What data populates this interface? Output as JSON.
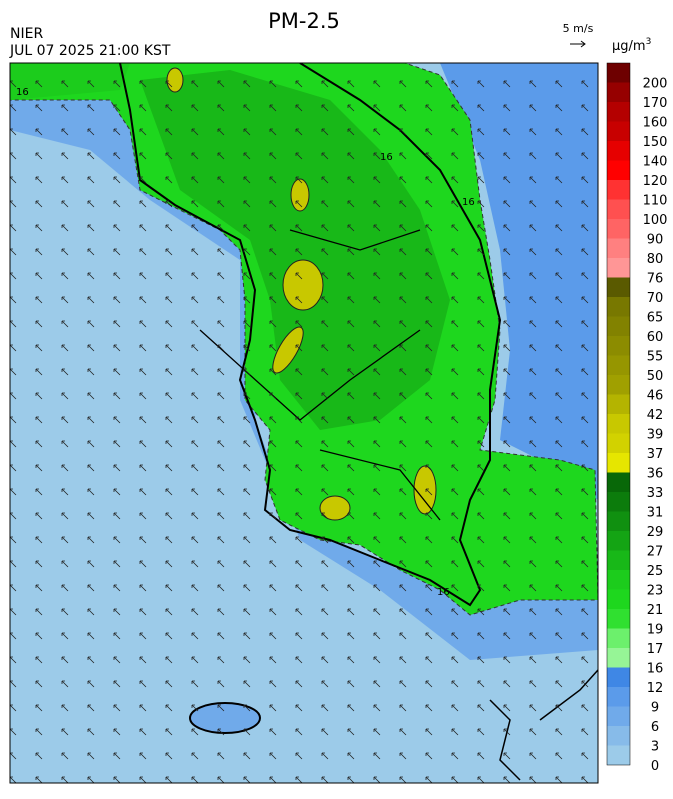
{
  "header": {
    "title": "PM-2.5",
    "source": "NIER",
    "datetime": "JUL 07 2025 21:00 KST"
  },
  "wind_scale": {
    "label": "5 m/s"
  },
  "colorbar": {
    "unit": "μg/m",
    "unit_sup": "3",
    "levels": [
      0,
      3,
      6,
      9,
      12,
      16,
      17,
      19,
      21,
      23,
      25,
      27,
      29,
      31,
      33,
      36,
      37,
      39,
      42,
      46,
      50,
      55,
      60,
      65,
      70,
      76,
      80,
      90,
      100,
      110,
      120,
      140,
      150,
      160,
      170,
      200
    ],
    "colors": [
      "#9ccbe9",
      "#87bbe9",
      "#70aaea",
      "#5b9bea",
      "#3f87e5",
      "#96f596",
      "#6cf06c",
      "#30e030",
      "#1ed71e",
      "#1ccc1c",
      "#18b818",
      "#14a414",
      "#109010",
      "#0c7c0c",
      "#086808",
      "#e6e600",
      "#d2d200",
      "#c8c800",
      "#b4b400",
      "#a0a000",
      "#969600",
      "#8c8c00",
      "#828200",
      "#787800",
      "#5a5a00",
      "#ff9696",
      "#ff8080",
      "#ff6464",
      "#ff5050",
      "#ff3232",
      "#ff0000",
      "#e60000",
      "#c80000",
      "#b40000",
      "#960000",
      "#6e0000"
    ]
  },
  "map": {
    "contour_labels": [
      "16",
      "16",
      "16",
      "16"
    ]
  }
}
